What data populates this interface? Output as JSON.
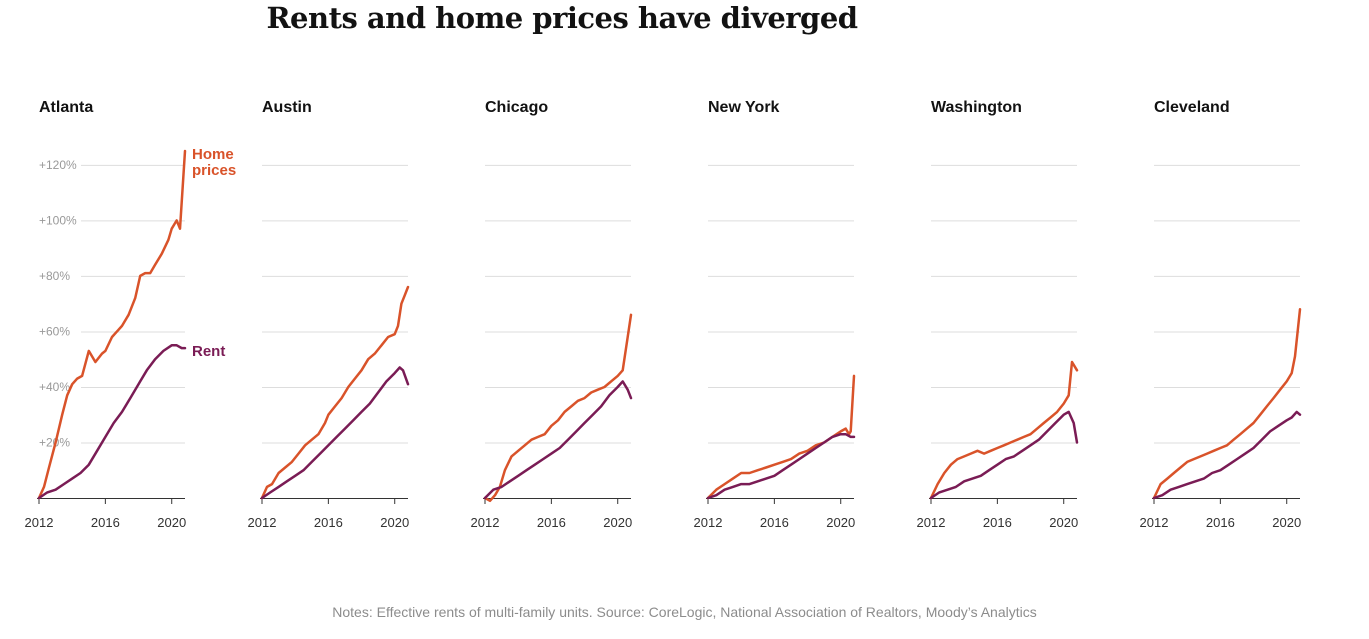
{
  "title": "Rents and home prices have diverged",
  "note": "Notes: Effective rents of multi-family units. Source: CoreLogic, National Association of Realtors, Moody’s Analytics",
  "colors": {
    "home_prices": "#d9532a",
    "rent": "#7a1c55",
    "grid": "#dddddd",
    "axis": "#333333"
  },
  "chart_data": {
    "type": "line",
    "ylim": [
      0,
      125
    ],
    "xlim": [
      2012,
      2020.8
    ],
    "y_ticks": [
      20,
      40,
      60,
      80,
      100,
      120
    ],
    "y_tick_labels": [
      "+20%",
      "+40%",
      "+60%",
      "+80%",
      "+100%",
      "+120%"
    ],
    "x_ticks": [
      2012,
      2016,
      2020
    ],
    "x_tick_labels": [
      "2012",
      "2016",
      "2020"
    ],
    "grid": true,
    "series_labels": {
      "home_prices": "Home prices",
      "rent": "Rent"
    },
    "panels": [
      {
        "city": "Atlanta",
        "series": [
          {
            "key": "home_prices",
            "x": [
              2012,
              2012.3,
              2012.6,
              2013,
              2013.4,
              2013.7,
              2014,
              2014.3,
              2014.6,
              2015,
              2015.4,
              2015.8,
              2016,
              2016.4,
              2016.7,
              2017,
              2017.4,
              2017.8,
              2018.1,
              2018.4,
              2018.7,
              2019,
              2019.4,
              2019.8,
              2020,
              2020.3,
              2020.5,
              2020.8
            ],
            "values": [
              0,
              4,
              11,
              20,
              30,
              37,
              41,
              43,
              44,
              53,
              49,
              52,
              53,
              58,
              60,
              62,
              66,
              72,
              80,
              81,
              81,
              84,
              88,
              93,
              97,
              100,
              97,
              125
            ]
          },
          {
            "key": "rent",
            "x": [
              2012,
              2012.5,
              2013,
              2013.5,
              2014,
              2014.5,
              2015,
              2015.5,
              2016,
              2016.5,
              2017,
              2017.5,
              2018,
              2018.5,
              2019,
              2019.5,
              2020,
              2020.3,
              2020.6,
              2020.8
            ],
            "values": [
              0,
              2,
              3,
              5,
              7,
              9,
              12,
              17,
              22,
              27,
              31,
              36,
              41,
              46,
              50,
              53,
              55,
              55,
              54,
              54
            ]
          }
        ]
      },
      {
        "city": "Austin",
        "series": [
          {
            "key": "home_prices",
            "x": [
              2012,
              2012.3,
              2012.6,
              2013,
              2013.4,
              2013.8,
              2014.2,
              2014.6,
              2015,
              2015.4,
              2015.8,
              2016,
              2016.4,
              2016.8,
              2017.2,
              2017.6,
              2018,
              2018.4,
              2018.8,
              2019.2,
              2019.6,
              2020,
              2020.2,
              2020.4,
              2020.6,
              2020.8
            ],
            "values": [
              0,
              4,
              5,
              9,
              11,
              13,
              16,
              19,
              21,
              23,
              27,
              30,
              33,
              36,
              40,
              43,
              46,
              50,
              52,
              55,
              58,
              59,
              62,
              70,
              73,
              76
            ]
          },
          {
            "key": "rent",
            "x": [
              2012,
              2012.5,
              2013,
              2013.5,
              2014,
              2014.5,
              2015,
              2015.5,
              2016,
              2016.5,
              2017,
              2017.5,
              2018,
              2018.5,
              2019,
              2019.5,
              2020,
              2020.3,
              2020.5,
              2020.8
            ],
            "values": [
              0,
              2,
              4,
              6,
              8,
              10,
              13,
              16,
              19,
              22,
              25,
              28,
              31,
              34,
              38,
              42,
              45,
              47,
              46,
              41
            ]
          }
        ]
      },
      {
        "city": "Chicago",
        "series": [
          {
            "key": "home_prices",
            "x": [
              2012,
              2012.3,
              2012.6,
              2012.9,
              2013.2,
              2013.6,
              2014,
              2014.4,
              2014.8,
              2015.2,
              2015.6,
              2016,
              2016.4,
              2016.8,
              2017.2,
              2017.6,
              2018,
              2018.4,
              2018.8,
              2019.2,
              2019.6,
              2020,
              2020.3,
              2020.6,
              2020.8
            ],
            "values": [
              0,
              -1,
              1,
              4,
              10,
              15,
              17,
              19,
              21,
              22,
              23,
              26,
              28,
              31,
              33,
              35,
              36,
              38,
              39,
              40,
              42,
              44,
              46,
              58,
              66
            ]
          },
          {
            "key": "rent",
            "x": [
              2012,
              2012.5,
              2013,
              2013.5,
              2014,
              2014.5,
              2015,
              2015.5,
              2016,
              2016.5,
              2017,
              2017.5,
              2018,
              2018.5,
              2019,
              2019.5,
              2020,
              2020.3,
              2020.6,
              2020.8
            ],
            "values": [
              0,
              3,
              4,
              6,
              8,
              10,
              12,
              14,
              16,
              18,
              21,
              24,
              27,
              30,
              33,
              37,
              40,
              42,
              39,
              36
            ]
          }
        ]
      },
      {
        "city": "New York",
        "series": [
          {
            "key": "home_prices",
            "x": [
              2012,
              2012.5,
              2013,
              2013.5,
              2014,
              2014.5,
              2015,
              2015.5,
              2016,
              2016.5,
              2017,
              2017.5,
              2018,
              2018.5,
              2019,
              2019.5,
              2020,
              2020.3,
              2020.5,
              2020.6,
              2020.8
            ],
            "values": [
              0,
              3,
              5,
              7,
              9,
              9,
              10,
              11,
              12,
              13,
              14,
              16,
              17,
              19,
              20,
              22,
              24,
              25,
              23,
              24,
              44
            ]
          },
          {
            "key": "rent",
            "x": [
              2012,
              2012.5,
              2013,
              2013.5,
              2014,
              2014.5,
              2015,
              2015.5,
              2016,
              2016.5,
              2017,
              2017.5,
              2018,
              2018.5,
              2019,
              2019.5,
              2020,
              2020.3,
              2020.6,
              2020.8
            ],
            "values": [
              0,
              1,
              3,
              4,
              5,
              5,
              6,
              7,
              8,
              10,
              12,
              14,
              16,
              18,
              20,
              22,
              23,
              23,
              22,
              22
            ]
          }
        ]
      },
      {
        "city": "Washington",
        "series": [
          {
            "key": "home_prices",
            "x": [
              2012,
              2012.4,
              2012.8,
              2013.2,
              2013.6,
              2014,
              2014.4,
              2014.8,
              2015.2,
              2015.6,
              2016,
              2016.4,
              2016.8,
              2017.2,
              2017.6,
              2018,
              2018.4,
              2018.8,
              2019.2,
              2019.6,
              2020,
              2020.3,
              2020.5,
              2020.8
            ],
            "values": [
              0,
              5,
              9,
              12,
              14,
              15,
              16,
              17,
              16,
              17,
              18,
              19,
              20,
              21,
              22,
              23,
              25,
              27,
              29,
              31,
              34,
              37,
              49,
              46
            ]
          },
          {
            "key": "rent",
            "x": [
              2012,
              2012.5,
              2013,
              2013.5,
              2014,
              2014.5,
              2015,
              2015.5,
              2016,
              2016.5,
              2017,
              2017.5,
              2018,
              2018.5,
              2019,
              2019.5,
              2020,
              2020.3,
              2020.6,
              2020.8
            ],
            "values": [
              0,
              2,
              3,
              4,
              6,
              7,
              8,
              10,
              12,
              14,
              15,
              17,
              19,
              21,
              24,
              27,
              30,
              31,
              27,
              20
            ]
          }
        ]
      },
      {
        "city": "Cleveland",
        "series": [
          {
            "key": "home_prices",
            "x": [
              2012,
              2012.4,
              2012.8,
              2013.2,
              2013.6,
              2014,
              2014.4,
              2014.8,
              2015.2,
              2015.6,
              2016,
              2016.4,
              2016.8,
              2017.2,
              2017.6,
              2018,
              2018.4,
              2018.8,
              2019.2,
              2019.6,
              2020,
              2020.3,
              2020.5,
              2020.8
            ],
            "values": [
              0,
              5,
              7,
              9,
              11,
              13,
              14,
              15,
              16,
              17,
              18,
              19,
              21,
              23,
              25,
              27,
              30,
              33,
              36,
              39,
              42,
              45,
              51,
              68
            ]
          },
          {
            "key": "rent",
            "x": [
              2012,
              2012.5,
              2013,
              2013.5,
              2014,
              2014.5,
              2015,
              2015.5,
              2016,
              2016.5,
              2017,
              2017.5,
              2018,
              2018.5,
              2019,
              2019.5,
              2020,
              2020.3,
              2020.6,
              2020.8
            ],
            "values": [
              0,
              1,
              3,
              4,
              5,
              6,
              7,
              9,
              10,
              12,
              14,
              16,
              18,
              21,
              24,
              26,
              28,
              29,
              31,
              30
            ]
          }
        ]
      }
    ]
  }
}
